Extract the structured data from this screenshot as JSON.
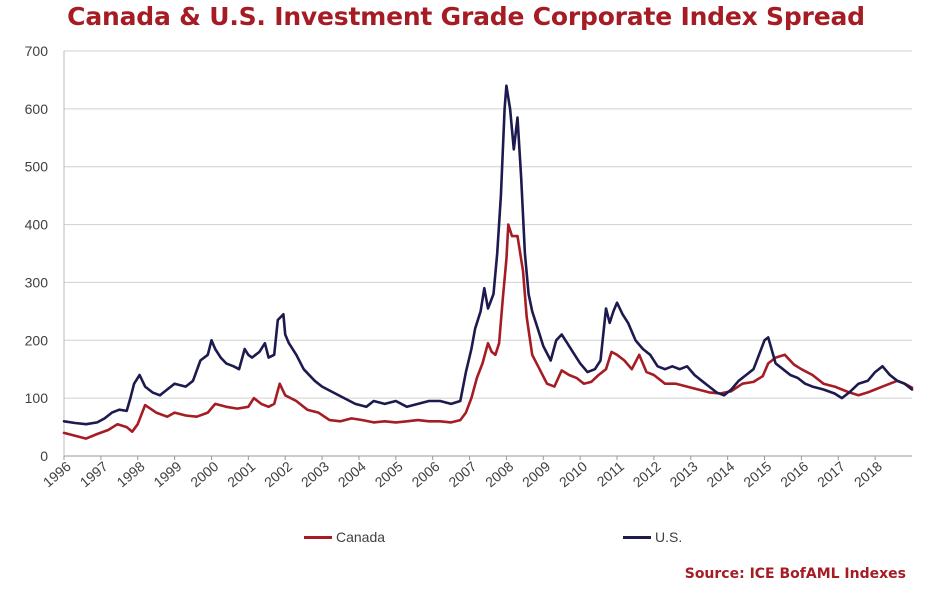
{
  "title": "Canada & U.S. Investment Grade Corporate Index Spread",
  "source": "Source: ICE BofAML Indexes",
  "colors": {
    "canada": "#a51c24",
    "us": "#1c1a4e",
    "title": "#a51c24",
    "grid": "#d0d0d0"
  },
  "chart_data": {
    "type": "line",
    "title": "Canada & U.S. Investment Grade Corporate Index Spread",
    "xlabel": "",
    "ylabel": "",
    "ylim": [
      0,
      700
    ],
    "xlim": [
      1996,
      2019
    ],
    "y_ticks": [
      0,
      100,
      200,
      300,
      400,
      500,
      600,
      700
    ],
    "x_tick_labels": [
      "1996",
      "1997",
      "1998",
      "1999",
      "2000",
      "2001",
      "2002",
      "2003",
      "2004",
      "2005",
      "2006",
      "2007",
      "2008",
      "2009",
      "2010",
      "2011",
      "2012",
      "2013",
      "2014",
      "2015",
      "2016",
      "2017",
      "2018"
    ],
    "grid": "horizontal",
    "legend": "bottom",
    "series": [
      {
        "name": "Canada",
        "color": "#a51c24",
        "x": [
          1996.0,
          1996.3,
          1996.6,
          1996.9,
          1997.2,
          1997.45,
          1997.7,
          1997.85,
          1998.0,
          1998.2,
          1998.5,
          1998.8,
          1999.0,
          1999.3,
          1999.6,
          1999.9,
          2000.1,
          2000.4,
          2000.7,
          2001.0,
          2001.15,
          2001.35,
          2001.55,
          2001.7,
          2001.85,
          2002.0,
          2002.3,
          2002.6,
          2002.9,
          2003.2,
          2003.5,
          2003.8,
          2004.1,
          2004.4,
          2004.7,
          2005.0,
          2005.3,
          2005.6,
          2005.9,
          2006.2,
          2006.5,
          2006.75,
          2006.9,
          2007.05,
          2007.2,
          2007.35,
          2007.5,
          2007.6,
          2007.7,
          2007.8,
          2007.9,
          2008.0,
          2008.05,
          2008.15,
          2008.3,
          2008.45,
          2008.55,
          2008.7,
          2008.9,
          2009.1,
          2009.3,
          2009.5,
          2009.7,
          2009.9,
          2010.1,
          2010.3,
          2010.5,
          2010.7,
          2010.85,
          2011.0,
          2011.2,
          2011.4,
          2011.6,
          2011.8,
          2012.0,
          2012.3,
          2012.6,
          2012.9,
          2013.2,
          2013.5,
          2013.8,
          2014.1,
          2014.4,
          2014.7,
          2014.95,
          2015.1,
          2015.3,
          2015.55,
          2015.8,
          2016.0,
          2016.3,
          2016.6,
          2016.9,
          2017.1,
          2017.3,
          2017.55,
          2017.8,
          2018.0,
          2018.2,
          2018.4,
          2018.6,
          2018.8,
          2019.0
        ],
        "values": [
          40,
          35,
          30,
          38,
          45,
          55,
          50,
          42,
          55,
          88,
          75,
          68,
          75,
          70,
          68,
          75,
          90,
          85,
          82,
          85,
          100,
          90,
          85,
          90,
          125,
          105,
          95,
          80,
          75,
          62,
          60,
          65,
          62,
          58,
          60,
          58,
          60,
          62,
          60,
          60,
          58,
          62,
          75,
          100,
          135,
          160,
          195,
          180,
          175,
          195,
          270,
          340,
          400,
          380,
          380,
          320,
          240,
          175,
          150,
          125,
          120,
          148,
          140,
          135,
          125,
          128,
          140,
          150,
          180,
          175,
          165,
          150,
          175,
          145,
          140,
          125,
          125,
          120,
          115,
          110,
          108,
          112,
          125,
          128,
          138,
          160,
          170,
          175,
          158,
          150,
          140,
          125,
          120,
          115,
          110,
          105,
          110,
          115,
          120,
          125,
          130,
          125,
          118
        ]
      },
      {
        "name": "U.S.",
        "color": "#1c1a4e",
        "x": [
          1996.0,
          1996.3,
          1996.6,
          1996.9,
          1997.1,
          1997.3,
          1997.5,
          1997.7,
          1997.8,
          1997.9,
          1998.05,
          1998.2,
          1998.4,
          1998.6,
          1998.8,
          1999.0,
          1999.3,
          1999.5,
          1999.7,
          1999.9,
          2000.0,
          2000.1,
          2000.25,
          2000.4,
          2000.6,
          2000.75,
          2000.9,
          2001.0,
          2001.1,
          2001.3,
          2001.45,
          2001.55,
          2001.7,
          2001.8,
          2001.95,
          2002.0,
          2002.1,
          2002.3,
          2002.5,
          2002.8,
          2003.0,
          2003.3,
          2003.6,
          2003.9,
          2004.2,
          2004.4,
          2004.7,
          2005.0,
          2005.3,
          2005.6,
          2005.9,
          2006.2,
          2006.5,
          2006.75,
          2006.9,
          2007.05,
          2007.15,
          2007.3,
          2007.4,
          2007.5,
          2007.65,
          2007.75,
          2007.85,
          2007.95,
          2008.0,
          2008.1,
          2008.2,
          2008.3,
          2008.4,
          2008.5,
          2008.6,
          2008.7,
          2008.85,
          2009.0,
          2009.2,
          2009.35,
          2009.5,
          2009.65,
          2009.8,
          2010.0,
          2010.2,
          2010.4,
          2010.55,
          2010.7,
          2010.8,
          2010.9,
          2011.0,
          2011.15,
          2011.3,
          2011.5,
          2011.7,
          2011.9,
          2012.1,
          2012.3,
          2012.5,
          2012.7,
          2012.9,
          2013.1,
          2013.3,
          2013.5,
          2013.7,
          2013.9,
          2014.1,
          2014.3,
          2014.5,
          2014.7,
          2014.85,
          2015.0,
          2015.1,
          2015.3,
          2015.5,
          2015.7,
          2015.9,
          2016.1,
          2016.3,
          2016.6,
          2016.9,
          2017.1,
          2017.3,
          2017.55,
          2017.8,
          2018.0,
          2018.2,
          2018.4,
          2018.6,
          2018.8,
          2019.0
        ],
        "values": [
          60,
          57,
          55,
          58,
          65,
          75,
          80,
          78,
          100,
          125,
          140,
          120,
          110,
          105,
          115,
          125,
          120,
          130,
          165,
          175,
          200,
          185,
          170,
          160,
          155,
          150,
          185,
          175,
          170,
          180,
          195,
          170,
          175,
          235,
          245,
          210,
          195,
          175,
          150,
          130,
          120,
          110,
          100,
          90,
          85,
          95,
          90,
          95,
          85,
          90,
          95,
          95,
          90,
          95,
          145,
          185,
          220,
          250,
          290,
          255,
          280,
          350,
          450,
          600,
          640,
          600,
          530,
          585,
          480,
          350,
          280,
          250,
          220,
          190,
          165,
          200,
          210,
          195,
          180,
          160,
          145,
          150,
          165,
          255,
          230,
          250,
          265,
          245,
          230,
          200,
          185,
          175,
          155,
          150,
          155,
          150,
          155,
          140,
          130,
          120,
          110,
          105,
          115,
          130,
          140,
          150,
          175,
          200,
          205,
          160,
          150,
          140,
          135,
          125,
          120,
          115,
          108,
          100,
          110,
          125,
          130,
          145,
          155,
          140,
          130,
          125,
          115
        ]
      }
    ]
  }
}
